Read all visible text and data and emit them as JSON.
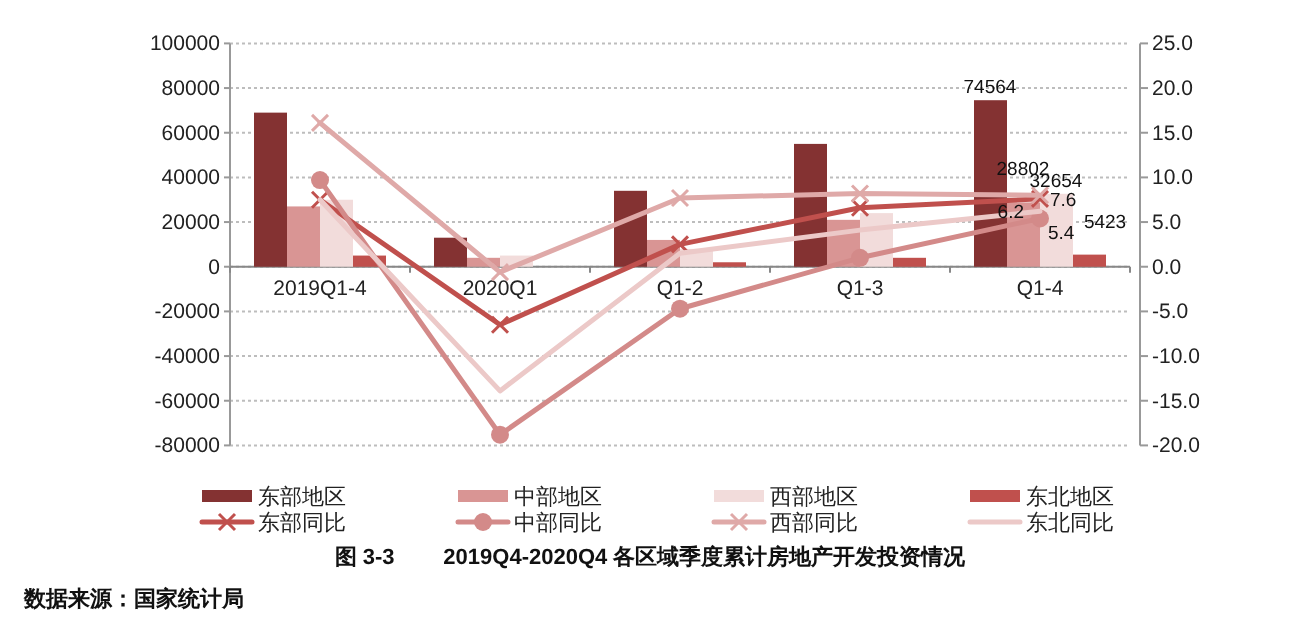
{
  "chart_data": {
    "type": "bar",
    "title": "图 3-3        2019Q4-2020Q4 各区域季度累计房地产开发投资情况",
    "annotations": [
      "数据来源：国家统计局"
    ],
    "categories": [
      "2019Q1-4",
      "2020Q1",
      "Q1-2",
      "Q1-3",
      "Q1-4"
    ],
    "series": [
      {
        "name": "东部地区",
        "color": "#843232",
        "values": [
          69000,
          13000,
          34000,
          55000,
          74564
        ],
        "value_labels": [
          null,
          null,
          null,
          null,
          "74564"
        ]
      },
      {
        "name": "中部地区",
        "color": "#d99594",
        "values": [
          27000,
          4000,
          12000,
          21000,
          28802
        ],
        "value_labels": [
          null,
          null,
          null,
          null,
          "28802"
        ]
      },
      {
        "name": "西部地区",
        "color": "#f2dcdb",
        "values": [
          30000,
          5000,
          8000,
          24000,
          32654
        ],
        "value_labels": [
          null,
          null,
          null,
          null,
          "32654"
        ]
      },
      {
        "name": "东北地区",
        "color": "#c0504d",
        "values": [
          5000,
          null,
          2000,
          4000,
          5423
        ],
        "value_labels": [
          null,
          null,
          null,
          null,
          "5423"
        ]
      },
      {
        "name": "东部同比",
        "type": "line",
        "axis": "y2",
        "marker": "cross",
        "color": "#c0504d",
        "values": [
          7.5,
          -6.5,
          2.5,
          6.6,
          7.6
        ],
        "value_labels": [
          null,
          null,
          null,
          null,
          "7.6"
        ]
      },
      {
        "name": "中部同比",
        "type": "line",
        "axis": "y2",
        "marker": "circle",
        "color": "#d38a89",
        "values": [
          9.7,
          -18.8,
          -4.7,
          1.0,
          5.4
        ],
        "value_labels": [
          null,
          null,
          null,
          null,
          "5.4"
        ]
      },
      {
        "name": "西部同比",
        "type": "line",
        "axis": "y2",
        "marker": "cross",
        "color": "#dfa9a8",
        "values": [
          16.1,
          -0.6,
          7.7,
          8.2,
          8.0
        ]
      },
      {
        "name": "东北同比",
        "type": "line",
        "axis": "y2",
        "marker": "none",
        "color": "#ecc9c8",
        "values": [
          7.5,
          -13.9,
          1.5,
          4.1,
          6.2
        ],
        "value_labels": [
          null,
          null,
          null,
          null,
          "6.2"
        ]
      }
    ],
    "ylim": [
      -80000,
      100000
    ],
    "yticks": [
      -80000,
      -60000,
      -40000,
      -20000,
      0,
      20000,
      40000,
      60000,
      80000,
      100000
    ],
    "y2lim": [
      -20,
      25
    ],
    "y2ticks": [
      {
        "value": -20,
        "label": "-20.0"
      },
      {
        "value": -15,
        "label": "-15.0"
      },
      {
        "value": -10,
        "label": "-10.0"
      },
      {
        "value": -5,
        "label": "-5.0"
      },
      {
        "value": 0,
        "label": "0.0"
      },
      {
        "value": 5,
        "label": "5.0"
      },
      {
        "value": 10,
        "label": "10.0"
      },
      {
        "value": 15,
        "label": "15.0"
      },
      {
        "value": 20,
        "label": "20.0"
      },
      {
        "value": 25,
        "label": "25.0"
      }
    ],
    "grid": "y",
    "legend": "bottom"
  }
}
